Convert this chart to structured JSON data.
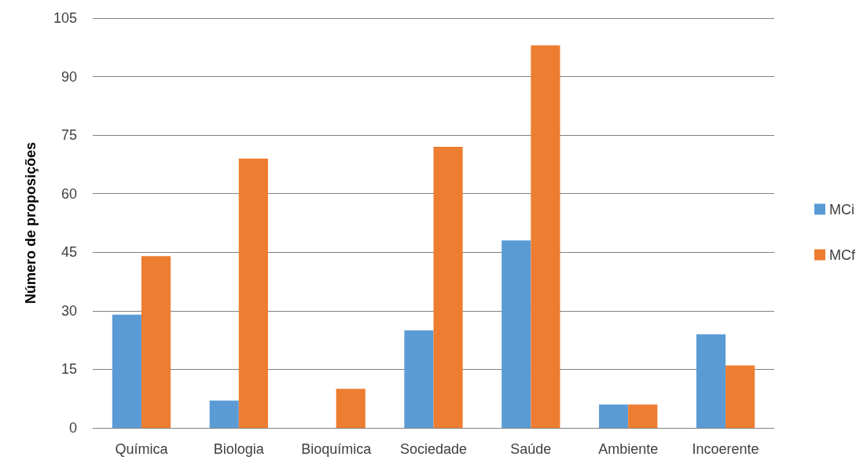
{
  "chart_data": {
    "type": "bar",
    "ylabel": "Número de proposições",
    "categories": [
      "Química",
      "Biologia",
      "Bioquímica",
      "Sociedade",
      "Saúde",
      "Ambiente",
      "Incoerente"
    ],
    "series": [
      {
        "name": "MCi",
        "color": "#5b9bd5",
        "values": [
          29,
          7,
          0,
          25,
          48,
          6,
          24
        ]
      },
      {
        "name": "MCf",
        "color": "#ed7d31",
        "values": [
          44,
          69,
          10,
          72,
          98,
          6,
          16
        ]
      }
    ],
    "ylim": [
      0,
      105
    ],
    "yticks": [
      0,
      15,
      30,
      45,
      60,
      75,
      90,
      105
    ],
    "grid": "y",
    "legend": "right"
  }
}
